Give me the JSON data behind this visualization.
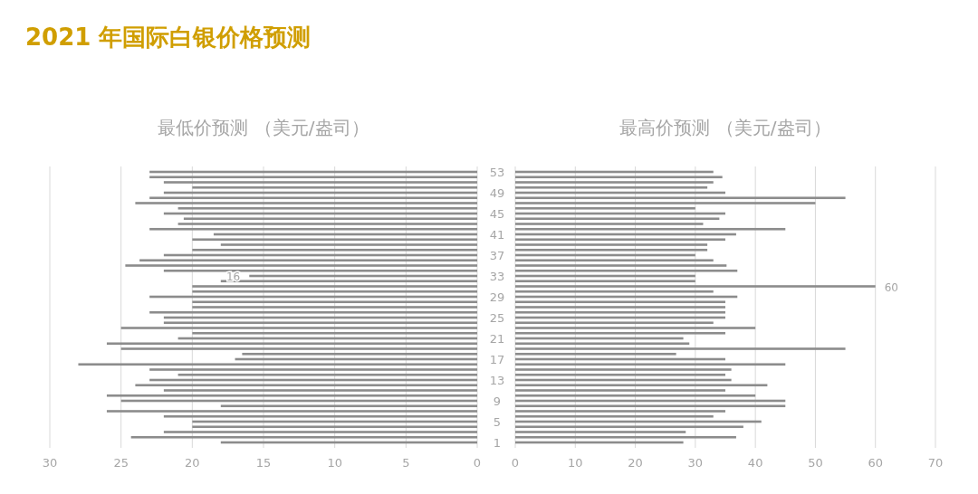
{
  "chart_data": [
    {
      "type": "bar",
      "orientation": "horizontal",
      "title": "2021 年国际白银价格预测",
      "subtitle": "最低价预测 （美元/盎司）",
      "categories": [
        null,
        null,
        null,
        null,
        null,
        null,
        null,
        null,
        null,
        null,
        null,
        null,
        null,
        null,
        null,
        null,
        null,
        null,
        null,
        null,
        null,
        null,
        null,
        null,
        null,
        null,
        null,
        null,
        null,
        null,
        null,
        null,
        null,
        null,
        null,
        null,
        null,
        null,
        null,
        null,
        null,
        null,
        null,
        null,
        null,
        null,
        null,
        null,
        null,
        null,
        null,
        null,
        null
      ],
      "values": [
        23,
        23,
        22,
        20,
        22,
        23,
        24,
        21,
        22,
        20.6,
        21,
        23,
        18.5,
        20,
        18,
        20,
        22,
        23.7,
        24.7,
        22,
        16,
        18,
        20,
        20,
        23,
        20,
        20,
        23,
        22,
        22,
        25,
        20,
        21,
        26,
        25,
        16.5,
        17,
        28,
        23,
        21,
        23,
        24,
        22,
        26,
        25,
        18,
        26,
        22,
        20,
        20,
        22,
        24.3,
        18
      ],
      "value_labels": [
        null,
        null,
        null,
        null,
        null,
        null,
        null,
        null,
        null,
        null,
        null,
        null,
        null,
        null,
        null,
        null,
        null,
        null,
        null,
        null,
        "16",
        null,
        null,
        null,
        null,
        null,
        null,
        null,
        null,
        null,
        null,
        null,
        null,
        null,
        null,
        null,
        null,
        null,
        null,
        null,
        null,
        null,
        null,
        null,
        null,
        null,
        null,
        null,
        null,
        null,
        null,
        null,
        null
      ],
      "color": "#8c8c8c",
      "xlim": [
        30,
        0
      ],
      "xticks": [
        30,
        25,
        20,
        15,
        10,
        5,
        0
      ],
      "grid": "x",
      "tick_labels": "x"
    },
    {
      "type": "bar",
      "orientation": "horizontal",
      "subtitle": "最高价预测 （美元/盎司）",
      "categories": [
        "53",
        null,
        null,
        null,
        "49",
        null,
        null,
        null,
        "45",
        null,
        null,
        null,
        "41",
        null,
        null,
        null,
        "37",
        null,
        null,
        null,
        "33",
        null,
        null,
        null,
        "29",
        null,
        null,
        null,
        "25",
        null,
        null,
        null,
        "21",
        null,
        null,
        null,
        "17",
        null,
        null,
        null,
        "13",
        null,
        null,
        null,
        "9",
        null,
        null,
        null,
        "5",
        null,
        null,
        null,
        "1"
      ],
      "values": [
        33,
        34.5,
        33,
        32,
        35,
        55,
        50,
        30,
        35,
        34,
        31.3,
        45,
        36.8,
        35,
        32,
        32,
        30,
        33,
        35.2,
        37,
        30,
        30,
        60,
        33,
        37,
        35,
        35,
        35,
        35,
        33,
        40,
        35,
        28,
        29,
        55,
        26.8,
        35,
        45,
        36,
        35,
        36,
        42,
        35,
        40,
        45,
        45,
        35,
        33,
        41,
        38,
        28.4,
        36.8,
        28
      ],
      "value_labels": [
        null,
        null,
        null,
        null,
        null,
        null,
        null,
        null,
        null,
        null,
        null,
        null,
        null,
        null,
        null,
        null,
        null,
        null,
        null,
        null,
        null,
        null,
        "60",
        null,
        null,
        null,
        null,
        null,
        null,
        null,
        null,
        null,
        null,
        null,
        null,
        null,
        null,
        null,
        null,
        null,
        null,
        null,
        null,
        null,
        null,
        null,
        null,
        null,
        null,
        null,
        null,
        null,
        null
      ],
      "color": "#8c8c8c",
      "xlim": [
        0,
        70
      ],
      "xticks": [
        0,
        10,
        20,
        30,
        40,
        50,
        60,
        70
      ],
      "grid": "x"
    }
  ]
}
